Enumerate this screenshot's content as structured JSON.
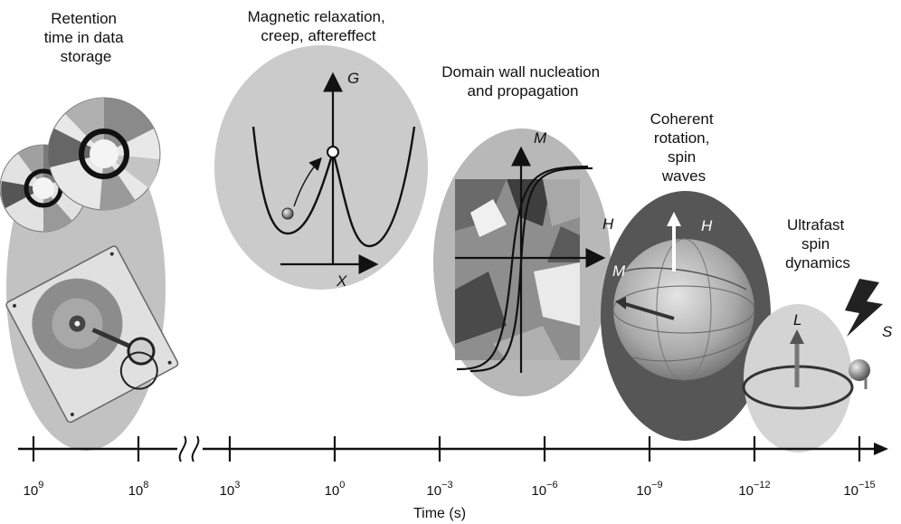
{
  "timeline": {
    "axis_title": "Time (s)",
    "ticks": [
      {
        "base": "10",
        "exp": "9"
      },
      {
        "base": "10",
        "exp": "8"
      },
      {
        "base": "10",
        "exp": "3"
      },
      {
        "base": "10",
        "exp": "0"
      },
      {
        "base": "10",
        "exp": "−3"
      },
      {
        "base": "10",
        "exp": "−6"
      },
      {
        "base": "10",
        "exp": "−9"
      },
      {
        "base": "10",
        "exp": "−12"
      },
      {
        "base": "10",
        "exp": "−15"
      }
    ]
  },
  "regions": {
    "retention": {
      "lines": [
        "Retention",
        "time in data",
        "storage"
      ]
    },
    "relaxation": {
      "lines": [
        "Magnetic relaxation,",
        "creep, aftereffect"
      ],
      "y_axis": "G",
      "x_axis": "X"
    },
    "domain_wall": {
      "lines": [
        "Domain wall nucleation",
        "and propagation"
      ],
      "y_axis": "M",
      "x_axis": "H"
    },
    "coherent": {
      "lines": [
        "Coherent",
        "rotation,",
        "spin",
        "waves"
      ],
      "field_label": "H",
      "moment_label": "M"
    },
    "ultrafast": {
      "lines": [
        "Ultrafast",
        "spin",
        "dynamics"
      ],
      "orbital_label": "L",
      "spin_label": "S"
    }
  },
  "colors": {
    "ellipse_light": "#c8c8c8",
    "ellipse_mid": "#b4b4b4",
    "ellipse_dark": "#555555",
    "ellipse_pale": "#d6d6d6",
    "ink": "#111111"
  }
}
